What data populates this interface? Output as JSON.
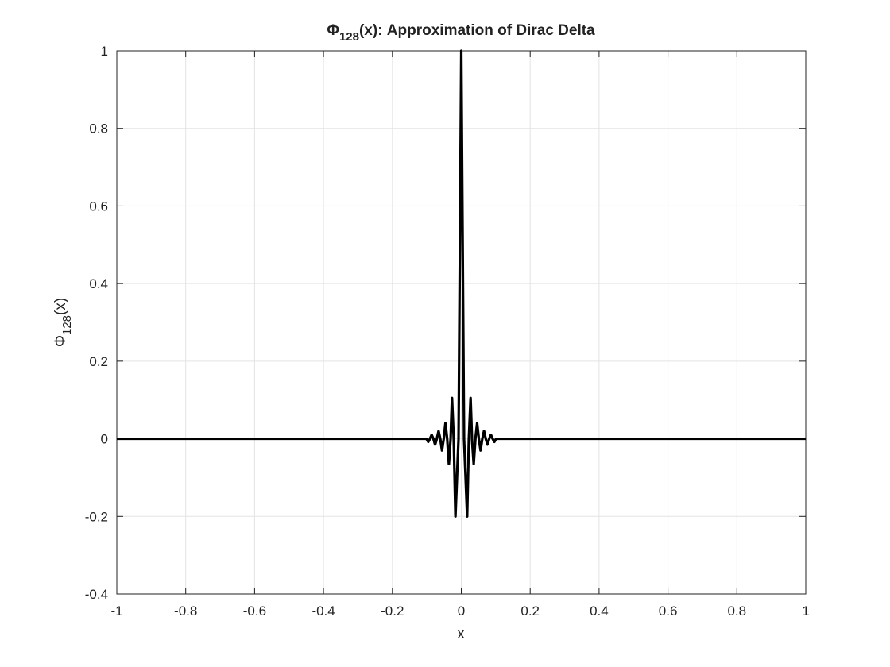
{
  "chart_data": {
    "type": "line",
    "title": {
      "symbol": "Φ",
      "subscript": "128",
      "rest": "(x): Approximation of Dirac Delta"
    },
    "xlabel": "x",
    "ylabel": {
      "symbol": "Φ",
      "subscript": "128",
      "rest": "(x)"
    },
    "x": [
      -1,
      -0.3,
      -0.101,
      -0.096,
      -0.091,
      -0.086,
      -0.081,
      -0.076,
      -0.071,
      -0.066,
      -0.061,
      -0.056,
      -0.051,
      -0.046,
      -0.041,
      -0.036,
      -0.031,
      -0.027,
      -0.022,
      -0.017,
      -0.008,
      0,
      0.008,
      0.017,
      0.022,
      0.027,
      0.031,
      0.036,
      0.041,
      0.046,
      0.051,
      0.056,
      0.061,
      0.066,
      0.071,
      0.076,
      0.081,
      0.086,
      0.091,
      0.096,
      0.101,
      0.3,
      1
    ],
    "series": [
      {
        "color": "#000000",
        "values": [
          0,
          0,
          0,
          -0.008,
          0,
          0.01,
          0,
          -0.015,
          0,
          0.02,
          0,
          -0.03,
          0,
          0.04,
          0,
          -0.065,
          0,
          0.105,
          0,
          -0.2,
          0,
          1,
          0,
          -0.2,
          0,
          0.105,
          0,
          -0.065,
          0,
          0.04,
          0,
          -0.03,
          0,
          0.02,
          0,
          -0.015,
          0,
          0.01,
          0,
          -0.008,
          0,
          0,
          0
        ]
      }
    ],
    "xlim": [
      -1,
      1
    ],
    "xticks": [
      -1,
      -0.8,
      -0.6,
      -0.4,
      -0.2,
      0,
      0.2,
      0.4,
      0.6,
      0.8,
      1
    ],
    "ylim": [
      -0.4,
      1
    ],
    "yticks": [
      -0.4,
      -0.2,
      0,
      0.2,
      0.4,
      0.6,
      0.8,
      1
    ],
    "grid": true
  }
}
